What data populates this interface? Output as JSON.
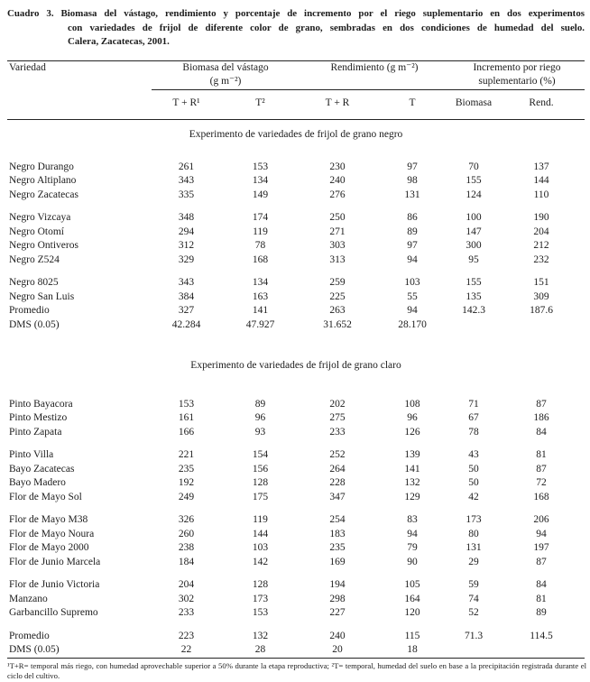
{
  "colors": {
    "background": "#ffffff",
    "text": "#1c1c1c",
    "rule": "#242424"
  },
  "title": {
    "line1": "Cuadro 3. Biomasa del vástago, rendimiento y porcentaje de incremento por el riego suplementario en dos experimentos",
    "line2": "con variedades de frijol de diferente color de grano, sembradas en dos condiciones de humedad del suelo.",
    "line3": "Calera, Zacatecas, 2001."
  },
  "table": {
    "columns": {
      "variety_header": "Variedad",
      "group_headers": [
        {
          "line1": "Biomasa del vástago",
          "line2": "(g m⁻²)"
        },
        {
          "line1": "Rendimiento (g m⁻²)",
          "line2": ""
        },
        {
          "line1": "Incremento por riego",
          "line2": "suplementario (%)"
        }
      ],
      "subheaders": [
        "T + R¹",
        "T²",
        "T + R",
        "T",
        "Biomasa",
        "Rend."
      ]
    },
    "sections": [
      {
        "title": "Experimento de variedades de frijol de grano negro",
        "groups": [
          [
            {
              "name": "Negro Durango",
              "values": [
                "261",
                "153",
                "230",
                "97",
                "70",
                "137"
              ]
            },
            {
              "name": "Negro Altiplano",
              "values": [
                "343",
                "134",
                "240",
                "98",
                "155",
                "144"
              ]
            },
            {
              "name": "Negro Zacatecas",
              "values": [
                "335",
                "149",
                "276",
                "131",
                "124",
                "110"
              ]
            }
          ],
          [
            {
              "name": "Negro Vizcaya",
              "values": [
                "348",
                "174",
                "250",
                "86",
                "100",
                "190"
              ]
            },
            {
              "name": "Negro Otomí",
              "values": [
                "294",
                "119",
                "271",
                "89",
                "147",
                "204"
              ]
            },
            {
              "name": "Negro Ontiveros",
              "values": [
                "312",
                "78",
                "303",
                "97",
                "300",
                "212"
              ]
            },
            {
              "name": "Negro Z524",
              "values": [
                "329",
                "168",
                "313",
                "94",
                "95",
                "232"
              ]
            }
          ],
          [
            {
              "name": "Negro 8025",
              "values": [
                "343",
                "134",
                "259",
                "103",
                "155",
                "151"
              ]
            },
            {
              "name": "Negro San Luis",
              "values": [
                "384",
                "163",
                "225",
                "55",
                "135",
                "309"
              ]
            },
            {
              "name": "Promedio",
              "values": [
                "327",
                "141",
                "263",
                "94",
                "142.3",
                "187.6"
              ]
            },
            {
              "name": "DMS (0.05)",
              "values": [
                "42.284",
                "47.927",
                "31.652",
                "28.170",
                "",
                ""
              ]
            }
          ]
        ]
      },
      {
        "title": "Experimento de variedades de frijol de grano claro",
        "groups": [
          [
            {
              "name": "Pinto Bayacora",
              "values": [
                "153",
                "89",
                "202",
                "108",
                "71",
                "87"
              ]
            },
            {
              "name": "Pinto Mestizo",
              "values": [
                "161",
                "96",
                "275",
                "96",
                "67",
                "186"
              ]
            },
            {
              "name": "Pinto Zapata",
              "values": [
                "166",
                "93",
                "233",
                "126",
                "78",
                "84"
              ]
            }
          ],
          [
            {
              "name": "Pinto Villa",
              "values": [
                "221",
                "154",
                "252",
                "139",
                "43",
                "81"
              ]
            },
            {
              "name": "Bayo Zacatecas",
              "values": [
                "235",
                "156",
                "264",
                "141",
                "50",
                "87"
              ]
            },
            {
              "name": "Bayo Madero",
              "values": [
                "192",
                "128",
                "228",
                "132",
                "50",
                "72"
              ]
            },
            {
              "name": "Flor de Mayo Sol",
              "values": [
                "249",
                "175",
                "347",
                "129",
                "42",
                "168"
              ]
            }
          ],
          [
            {
              "name": "Flor de Mayo M38",
              "values": [
                "326",
                "119",
                "254",
                "83",
                "173",
                "206"
              ]
            },
            {
              "name": "Flor de Mayo Noura",
              "values": [
                "260",
                "144",
                "183",
                "94",
                "80",
                "94"
              ]
            },
            {
              "name": "Flor de Mayo 2000",
              "values": [
                "238",
                "103",
                "235",
                "79",
                "131",
                "197"
              ]
            },
            {
              "name": "Flor de Junio Marcela",
              "values": [
                "184",
                "142",
                "169",
                "90",
                "29",
                "87"
              ]
            }
          ],
          [
            {
              "name": "Flor de Junio Victoria",
              "values": [
                "204",
                "128",
                "194",
                "105",
                "59",
                "84"
              ]
            },
            {
              "name": "Manzano",
              "values": [
                "302",
                "173",
                "298",
                "164",
                "74",
                "81"
              ]
            },
            {
              "name": "Garbancillo Supremo",
              "values": [
                "233",
                "153",
                "227",
                "120",
                "52",
                "89"
              ]
            }
          ],
          [
            {
              "name": "Promedio",
              "values": [
                "223",
                "132",
                "240",
                "115",
                "71.3",
                "114.5"
              ]
            },
            {
              "name": "DMS (0.05)",
              "values": [
                "22",
                "28",
                "20",
                "18",
                "",
                ""
              ]
            }
          ]
        ]
      }
    ]
  },
  "footnote": "¹T+R= temporal más riego, con humedad aprovechable superior a 50% durante la etapa reproductiva; ²T= temporal, humedad del suelo en base a la precipitación registrada durante el ciclo del cultivo."
}
